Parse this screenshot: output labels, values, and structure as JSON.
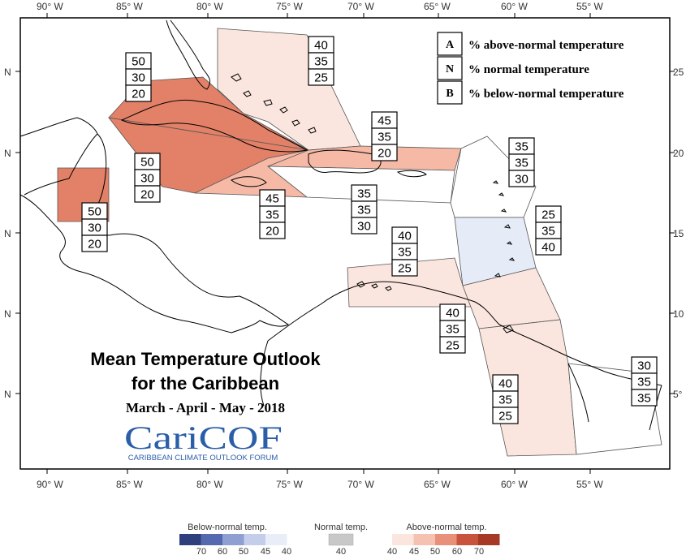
{
  "map": {
    "title_line1": "Mean Temperature Outlook",
    "title_line2": "for the Caribbean",
    "season": "March - April - May - 2018",
    "logo_text": "CariCOF",
    "logo_subtitle": "CARIBBEAN CLIMATE OUTLOOK FORUM",
    "lon_labels": [
      "90° W",
      "85° W",
      "80° W",
      "75° W",
      "70° W",
      "65° W",
      "60° W",
      "55° W"
    ],
    "lat_labels_left": [
      "N",
      "N",
      "N",
      "N",
      "N"
    ],
    "lat_labels_right": [
      "25",
      "20",
      "15",
      "10",
      "5°"
    ],
    "legend": [
      {
        "letter": "A",
        "text": "% above-normal temperature"
      },
      {
        "letter": "N",
        "text": "% normal temperature"
      },
      {
        "letter": "B",
        "text": "% below-normal temperature"
      }
    ],
    "regions": [
      {
        "name": "bahamas",
        "above": "40",
        "normal": "35",
        "below": "25",
        "color": "#fbe6df"
      },
      {
        "name": "cuba",
        "above": "50",
        "normal": "30",
        "below": "20",
        "color": "#e28168"
      },
      {
        "name": "cayman",
        "above": "50",
        "normal": "30",
        "below": "20",
        "color": "#e28168"
      },
      {
        "name": "jamaica",
        "above": "45",
        "normal": "35",
        "below": "20",
        "color": "#f5b9a6"
      },
      {
        "name": "belize",
        "above": "50",
        "normal": "30",
        "below": "20",
        "color": "#e28168"
      },
      {
        "name": "hispaniola-north",
        "above": "45",
        "normal": "35",
        "below": "20",
        "color": "#f5b9a6"
      },
      {
        "name": "hispaniola-south",
        "above": "35",
        "normal": "35",
        "below": "30",
        "color": "#ffffff"
      },
      {
        "name": "leeward-islands",
        "above": "35",
        "normal": "35",
        "below": "30",
        "color": "#ffffff"
      },
      {
        "name": "windward-islands",
        "above": "25",
        "normal": "35",
        "below": "40",
        "color": "#e6ecf7"
      },
      {
        "name": "abc-islands",
        "above": "40",
        "normal": "35",
        "below": "25",
        "color": "#fbe6df"
      },
      {
        "name": "trinidad",
        "above": "40",
        "normal": "35",
        "below": "25",
        "color": "#fbe6df"
      },
      {
        "name": "guyana",
        "above": "40",
        "normal": "35",
        "below": "25",
        "color": "#fbe6df"
      },
      {
        "name": "suriname-guiana",
        "above": "30",
        "normal": "35",
        "below": "35",
        "color": "#ffffff"
      }
    ]
  },
  "colorbar": {
    "below_title": "Below-normal temp.",
    "normal_title": "Normal temp.",
    "above_title": "Above-normal temp.",
    "below_ticks": [
      "70",
      "60",
      "50",
      "45",
      "40"
    ],
    "normal_ticks": [
      "40"
    ],
    "above_ticks": [
      "40",
      "45",
      "50",
      "60",
      "70"
    ],
    "below_colors": [
      "#2f3f7e",
      "#5469b0",
      "#8f9fd2",
      "#c4cdea",
      "#e9edf8"
    ],
    "normal_color": "#c8c8c8",
    "above_colors": [
      "#fbe6df",
      "#f5c1b0",
      "#e9907a",
      "#c9533c",
      "#a63a25"
    ]
  }
}
